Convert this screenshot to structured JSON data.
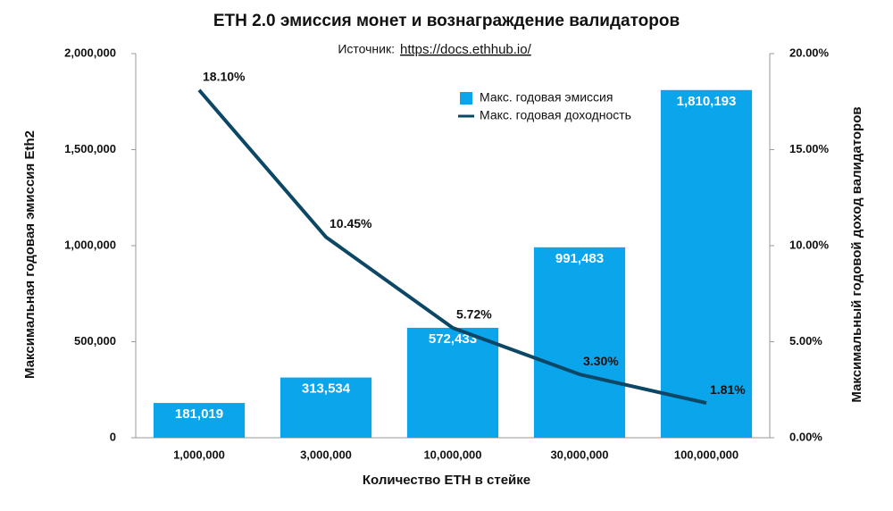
{
  "chart_data": {
    "type": "bar",
    "title": "ETH 2.0 эмиссия монет и вознаграждение валидаторов",
    "source_label": "Источник:",
    "source_url": "https://docs.ethhub.io/",
    "x_label": "Количество ETH в стейке",
    "y_label": "Максимальная годовая эмиссия Eth2",
    "y2_label": "Максимальный годовой доход валидаторов",
    "categories": [
      "1,000,000",
      "3,000,000",
      "10,000,000",
      "30,000,000",
      "100,000,000"
    ],
    "series": [
      {
        "name": "Макс. годовая эмиссия",
        "type": "bar",
        "color": "#0ba5ec",
        "values": [
          181019,
          313534,
          572433,
          991483,
          1810193
        ],
        "value_labels": [
          "181,019",
          "313,534",
          "572,433",
          "991,483",
          "1,810,193"
        ]
      },
      {
        "name": "Макс. годовая доходность",
        "type": "line",
        "axis": "y2",
        "color": "#0d4766",
        "values": [
          18.1,
          10.45,
          5.72,
          3.3,
          1.81
        ],
        "value_labels": [
          "18.10%",
          "10.45%",
          "5.72%",
          "3.30%",
          "1.81%"
        ]
      }
    ],
    "ylim": [
      0,
      2000000
    ],
    "yticks": [
      0,
      {
        "value": 500000,
        "label": "500,000"
      },
      {
        "value": 1000000,
        "label": "1,000,000"
      },
      {
        "value": 1500000,
        "label": "1,500,000"
      },
      {
        "value": 2000000,
        "label": "2,000,000"
      }
    ],
    "y2lim": [
      0,
      20
    ],
    "y2ticks": [
      {
        "value": 0,
        "label": "0.00%"
      },
      {
        "value": 5,
        "label": "5.00%"
      },
      {
        "value": 10,
        "label": "10.00%"
      },
      {
        "value": 15,
        "label": "15.00%"
      },
      {
        "value": 20,
        "label": "20.00%"
      }
    ]
  }
}
